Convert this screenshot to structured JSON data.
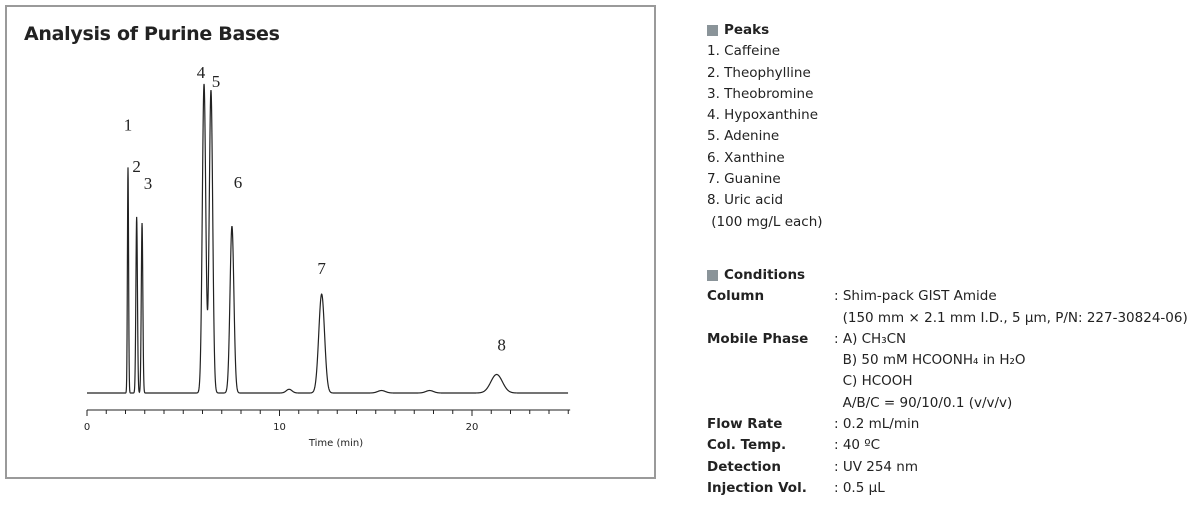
{
  "chart_data": {
    "type": "line",
    "title": "Analysis of Purine Bases",
    "xlabel": "Time (min)",
    "ylabel": "",
    "xlim": [
      0,
      25
    ],
    "xticks": [
      0,
      10,
      20
    ],
    "xtick_labels": [
      "0",
      "10",
      "20"
    ],
    "grid": false,
    "y_axis_shown": false,
    "line_color": "#222222",
    "peaks": [
      {
        "label": "1",
        "rt": 2.13,
        "relative_height": 73,
        "width_min": 0.03
      },
      {
        "label": "2",
        "rt": 2.58,
        "relative_height": 57,
        "width_min": 0.04
      },
      {
        "label": "3",
        "rt": 2.86,
        "relative_height": 55,
        "width_min": 0.04
      },
      {
        "label": "4",
        "rt": 6.08,
        "relative_height": 100,
        "width_min": 0.09
      },
      {
        "label": "5",
        "rt": 6.44,
        "relative_height": 98,
        "width_min": 0.09
      },
      {
        "label": "6",
        "rt": 7.53,
        "relative_height": 54,
        "width_min": 0.1
      },
      {
        "label": "7",
        "rt": 12.19,
        "relative_height": 32,
        "width_min": 0.15
      },
      {
        "label": "8",
        "rt": 21.28,
        "relative_height": 6,
        "width_min": 0.3
      }
    ],
    "minor_peaks": [
      {
        "rt": 10.5,
        "relative_height": 1.2,
        "width_min": 0.15
      },
      {
        "rt": 15.3,
        "relative_height": 0.8,
        "width_min": 0.2
      },
      {
        "rt": 17.8,
        "relative_height": 0.8,
        "width_min": 0.2
      }
    ]
  },
  "peaks_panel": {
    "header": "Peaks",
    "items": [
      "1. Caffeine",
      "2. Theophylline",
      "3. Theobromine",
      "4. Hypoxanthine",
      "5. Adenine",
      "6. Xanthine",
      "7. Guanine",
      "8. Uric acid"
    ],
    "note": " (100 mg/L each)"
  },
  "conditions_panel": {
    "header": "Conditions",
    "rows": [
      {
        "label": "Column",
        "values": [
          ": Shim-pack GIST Amide",
          "  (150 mm × 2.1 mm I.D., 5 µm, P/N: 227-30824-06)"
        ]
      },
      {
        "label": "Mobile Phase",
        "values": [
          ": A) CH₃CN",
          "  B) 50 mM HCOONH₄ in H₂O",
          "  C) HCOOH",
          "  A/B/C = 90/10/0.1 (v/v/v)"
        ]
      },
      {
        "label": "Flow Rate",
        "values": [
          ": 0.2 mL/min"
        ]
      },
      {
        "label": "Col. Temp.",
        "values": [
          ": 40 ºC"
        ]
      },
      {
        "label": "Detection",
        "values": [
          ": UV 254 nm"
        ]
      },
      {
        "label": "Injection Vol.",
        "values": [
          ": 0.5 µL"
        ]
      }
    ]
  }
}
